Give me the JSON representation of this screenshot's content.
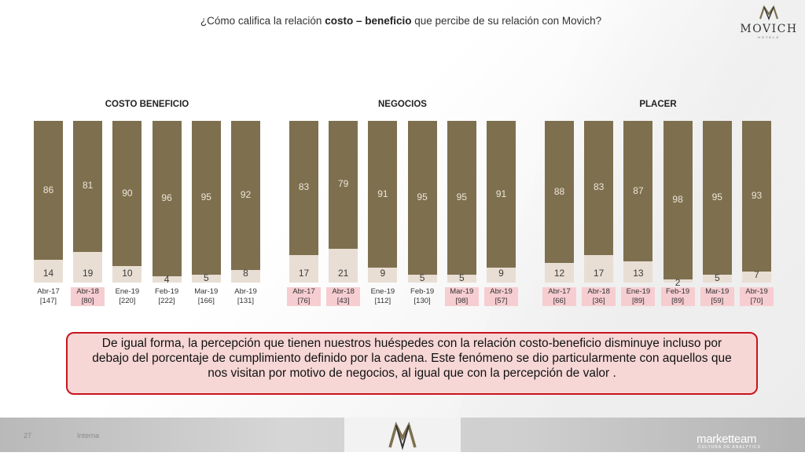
{
  "header": {
    "title_pre": "¿Cómo califica la relación ",
    "title_bold": "costo – beneficio",
    "title_post": " que percibe de su relación con Movich?"
  },
  "logo": {
    "word": "MOVICH",
    "sub": "HOTELS"
  },
  "colors": {
    "bar_top": "#7e704f",
    "bar_bottom": "#e8ded4",
    "highlight": "#f6cdd1",
    "note_border": "#c8141e"
  },
  "chart_data": [
    {
      "type": "bar",
      "stacked": true,
      "title": "COSTO BENEFICIO",
      "categories": [
        "Abr-17",
        "Abr-18",
        "Ene-19",
        "Feb-19",
        "Mar-19",
        "Abr-19"
      ],
      "samples": [
        "[147]",
        "[80]",
        "[220]",
        "[222]",
        "[166]",
        "[131]"
      ],
      "highlighted": [
        false,
        true,
        false,
        false,
        false,
        false
      ],
      "series": [
        {
          "values": [
            86,
            81,
            90,
            96,
            95,
            92
          ]
        },
        {
          "values": [
            14,
            19,
            10,
            4,
            5,
            8
          ]
        }
      ],
      "ylim": [
        0,
        100
      ]
    },
    {
      "type": "bar",
      "stacked": true,
      "title": "NEGOCIOS",
      "categories": [
        "Abr-17",
        "Abr-18",
        "Ene-19",
        "Feb-19",
        "Mar-19",
        "Abr-19"
      ],
      "samples": [
        "[76]",
        "[43]",
        "[112]",
        "[130]",
        "[98]",
        "[57]"
      ],
      "highlighted": [
        true,
        true,
        false,
        false,
        true,
        true
      ],
      "series": [
        {
          "values": [
            83,
            79,
            91,
            95,
            95,
            91
          ]
        },
        {
          "values": [
            17,
            21,
            9,
            5,
            5,
            9
          ]
        }
      ],
      "ylim": [
        0,
        100
      ]
    },
    {
      "type": "bar",
      "stacked": true,
      "title": "PLACER",
      "categories": [
        "Abr-17",
        "Abr-18",
        "Ene-19",
        "Feb-19",
        "Mar-19",
        "Abr-19"
      ],
      "samples": [
        "[66]",
        "[36]",
        "[89]",
        "[89]",
        "[59]",
        "[70]"
      ],
      "highlighted": [
        true,
        true,
        true,
        true,
        true,
        true
      ],
      "series": [
        {
          "values": [
            88,
            83,
            87,
            98,
            95,
            93
          ]
        },
        {
          "values": [
            12,
            17,
            13,
            2,
            5,
            7
          ]
        }
      ],
      "ylim": [
        0,
        100
      ]
    }
  ],
  "note": {
    "text": "De igual forma, la percepción que tienen nuestros huéspedes con la relación costo-beneficio disminuye incluso por debajo del porcentaje de cumplimiento definido por la cadena. Este fenómeno se dio particularmente con aquellos que nos visitan por motivo de negocios, al igual que con la percepción de valor ."
  },
  "footer": {
    "page": "27",
    "label": "Interna",
    "brand": "marketteam",
    "brand_sub": "CULTURA DE ANALYTICS"
  }
}
